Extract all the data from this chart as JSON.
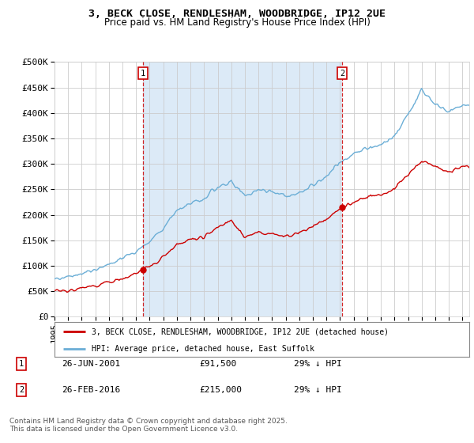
{
  "title": "3, BECK CLOSE, RENDLESHAM, WOODBRIDGE, IP12 2UE",
  "subtitle": "Price paid vs. HM Land Registry's House Price Index (HPI)",
  "legend_line1": "3, BECK CLOSE, RENDLESHAM, WOODBRIDGE, IP12 2UE (detached house)",
  "legend_line2": "HPI: Average price, detached house, East Suffolk",
  "transaction1_date": "26-JUN-2001",
  "transaction1_price": "£91,500",
  "transaction1_note": "29% ↓ HPI",
  "transaction2_date": "26-FEB-2016",
  "transaction2_price": "£215,000",
  "transaction2_note": "29% ↓ HPI",
  "footer": "Contains HM Land Registry data © Crown copyright and database right 2025.\nThis data is licensed under the Open Government Licence v3.0.",
  "hpi_color": "#6baed6",
  "price_color": "#cc0000",
  "background_color": "#ffffff",
  "plot_bg_color": "#ffffff",
  "shade_color": "#dceaf7",
  "ylim": [
    0,
    500000
  ],
  "yticks": [
    0,
    50000,
    100000,
    150000,
    200000,
    250000,
    300000,
    350000,
    400000,
    450000,
    500000
  ],
  "transaction1_x": 2001.5,
  "transaction1_y": 91500,
  "transaction2_x": 2016.15,
  "transaction2_y": 215000,
  "xmin": 1995.0,
  "xmax": 2025.5
}
